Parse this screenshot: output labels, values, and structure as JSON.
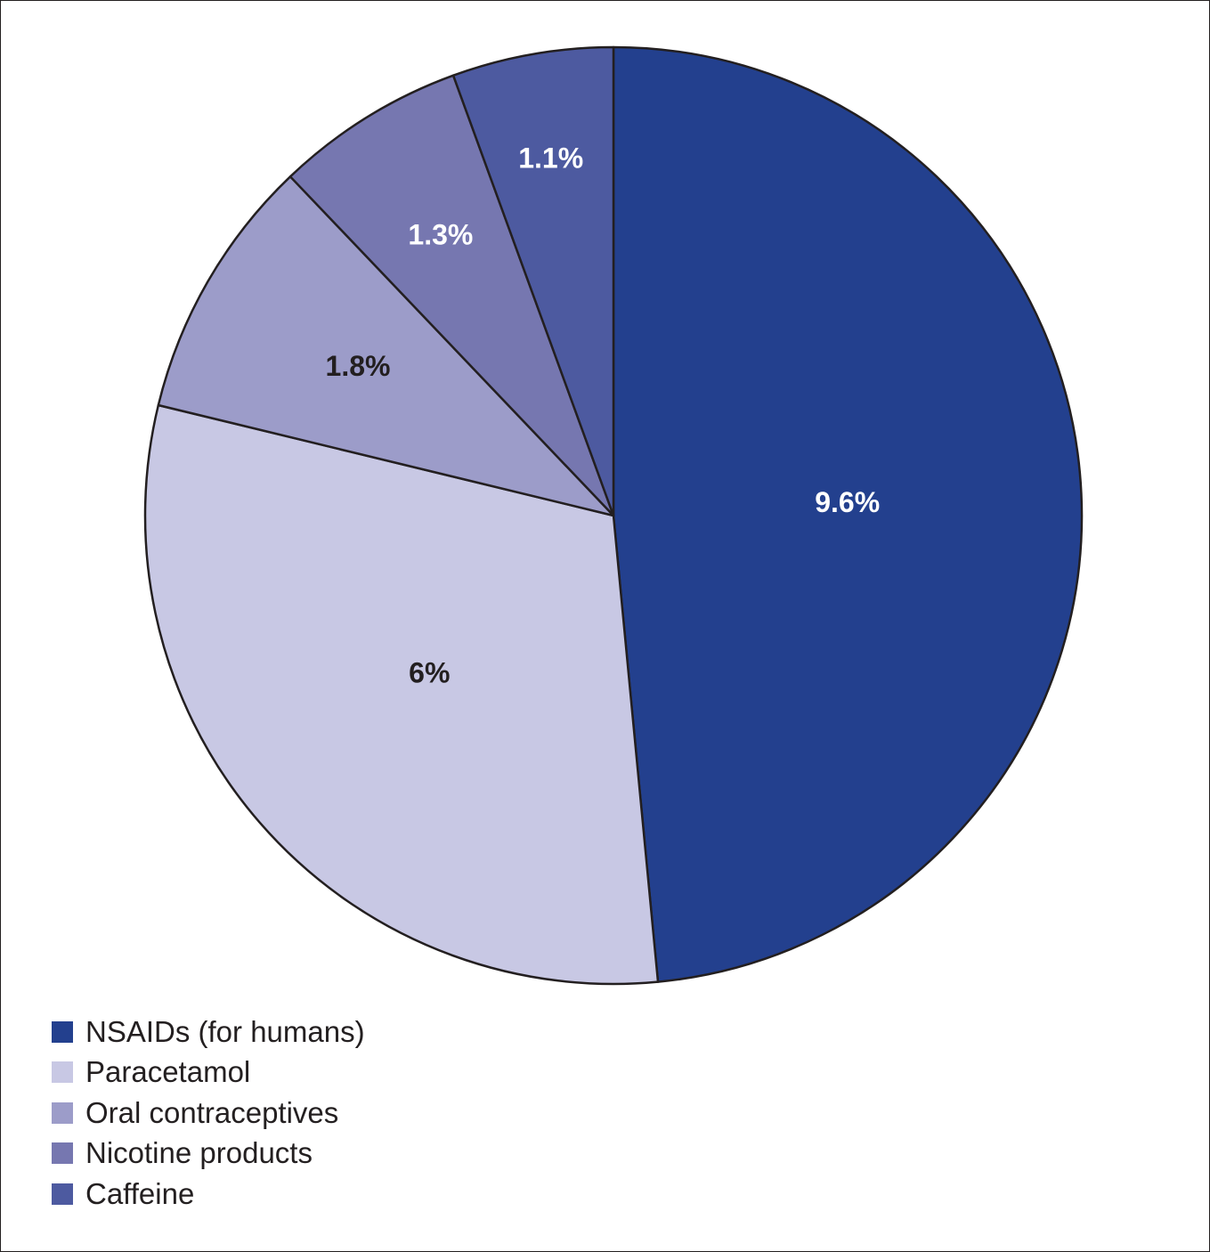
{
  "chart_data": {
    "type": "pie",
    "title": "",
    "slices": [
      {
        "label": "NSAIDs (for humans)",
        "value": 9.6,
        "value_label": "9.6%",
        "color": "#23408e",
        "label_color": "#ffffff"
      },
      {
        "label": "Paracetamol",
        "value": 6,
        "value_label": "6%",
        "color": "#c8c8e4",
        "label_color": "#231f20"
      },
      {
        "label": "Oral contraceptives",
        "value": 1.8,
        "value_label": "1.8%",
        "color": "#9c9cc9",
        "label_color": "#231f20"
      },
      {
        "label": "Nicotine products",
        "value": 1.3,
        "value_label": "1.3%",
        "color": "#7677b0",
        "label_color": "#ffffff"
      },
      {
        "label": "Caffeine",
        "value": 1.1,
        "value_label": "1.1%",
        "color": "#4d5aa0",
        "label_color": "#ffffff"
      }
    ],
    "start": "12 o'clock",
    "direction": "clockwise",
    "legend_position": "bottom-left"
  }
}
